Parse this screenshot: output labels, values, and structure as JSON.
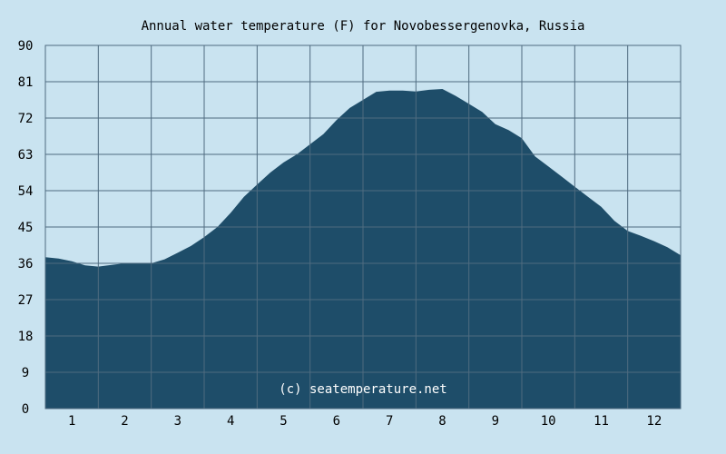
{
  "chart_data": {
    "type": "area",
    "title": "Annual water temperature (F) for Novobessergenovka, Russia",
    "watermark": "(c) seatemperature.net",
    "xlabel": "",
    "ylabel": "",
    "xlim": [
      0.5,
      12.5
    ],
    "ylim": [
      0,
      90
    ],
    "y_ticks": [
      "0",
      "9",
      "18",
      "27",
      "36",
      "45",
      "54",
      "63",
      "72",
      "81",
      "90"
    ],
    "x_tick_labels": [
      "1",
      "2",
      "3",
      "4",
      "5",
      "6",
      "7",
      "8",
      "9",
      "10",
      "11",
      "12"
    ],
    "grid": true,
    "colors": {
      "background": "#c9e3f0",
      "fill": "#1e4d69",
      "grid": "#4f6b80",
      "text": "#000000",
      "watermark": "#ffffff"
    },
    "series": [
      {
        "x": [
          0.5,
          0.75,
          1.0,
          1.25,
          1.5,
          1.75,
          2.0,
          2.25,
          2.5,
          2.75,
          3.0,
          3.25,
          3.5,
          3.75,
          4.0,
          4.25,
          4.5,
          4.75,
          5.0,
          5.25,
          5.5,
          5.75,
          6.0,
          6.25,
          6.5,
          6.75,
          7.0,
          7.25,
          7.5,
          7.75,
          8.0,
          8.25,
          8.5,
          8.75,
          9.0,
          9.25,
          9.5,
          9.75,
          10.0,
          10.25,
          10.5,
          10.75,
          11.0,
          11.25,
          11.5,
          11.75,
          12.0,
          12.25,
          12.5
        ],
        "values": [
          37.5,
          37.2,
          36.5,
          35.5,
          35.2,
          35.6,
          36.0,
          36.0,
          36.0,
          37.0,
          38.6,
          40.3,
          42.5,
          45.0,
          48.5,
          52.5,
          55.5,
          58.5,
          61.0,
          63.0,
          65.5,
          68.0,
          71.5,
          74.5,
          76.5,
          78.5,
          78.8,
          78.8,
          78.6,
          79.0,
          79.2,
          77.5,
          75.5,
          73.5,
          70.5,
          69.0,
          67.0,
          62.5,
          60.0,
          57.5,
          55.0,
          52.5,
          50.0,
          46.5,
          44.0,
          42.8,
          41.5,
          40.0,
          38.0
        ]
      }
    ]
  }
}
